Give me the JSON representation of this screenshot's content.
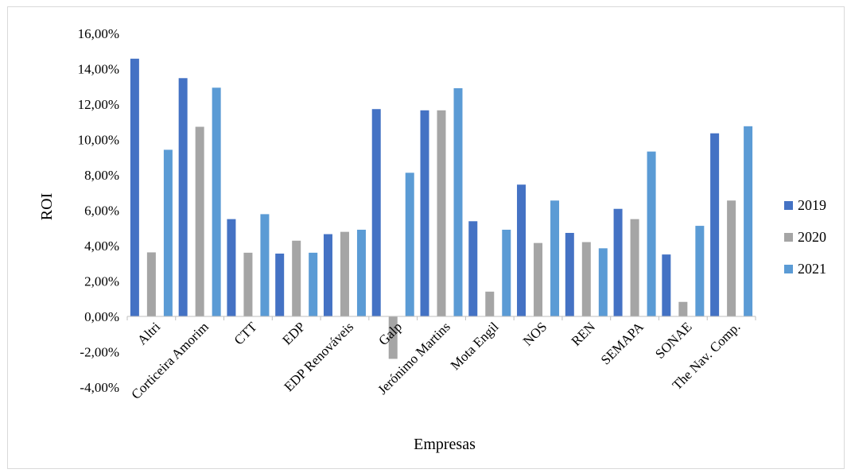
{
  "chart_data": {
    "type": "bar",
    "title": "",
    "xlabel": "Empresas",
    "ylabel": "ROI",
    "ylim": [
      -0.04,
      0.16
    ],
    "ytick_step": 0.02,
    "yticks": [
      "-4,00%",
      "-2,00%",
      "0,00%",
      "2,00%",
      "4,00%",
      "6,00%",
      "8,00%",
      "10,00%",
      "12,00%",
      "14,00%",
      "16,00%"
    ],
    "grid": false,
    "legend_position": "right",
    "categories": [
      "Altri",
      "Corticeira Amorim",
      "CTT",
      "EDP",
      "EDP Renováveis",
      "Galp",
      "Jerónimo Martins",
      "Mota Engil",
      "NOS",
      "REN",
      "SEMAPA",
      "SONAE",
      "The Nav. Comp."
    ],
    "series": [
      {
        "name": "2019",
        "color": "#4472c4",
        "values": [
          0.1457,
          0.1347,
          0.055,
          0.0355,
          0.0465,
          0.1172,
          0.1165,
          0.0538,
          0.0745,
          0.0472,
          0.0608,
          0.035,
          0.1035
        ]
      },
      {
        "name": "2020",
        "color": "#a5a5a5",
        "values": [
          0.0362,
          0.1072,
          0.036,
          0.0428,
          0.0478,
          -0.024,
          0.1165,
          0.014,
          0.0415,
          0.042,
          0.055,
          0.0082,
          0.0655
        ]
      },
      {
        "name": "2021",
        "color": "#5b9bd5",
        "values": [
          0.0942,
          0.1293,
          0.0578,
          0.036,
          0.049,
          0.0812,
          0.129,
          0.049,
          0.0655,
          0.0385,
          0.0932,
          0.0512,
          0.1075
        ]
      }
    ]
  }
}
